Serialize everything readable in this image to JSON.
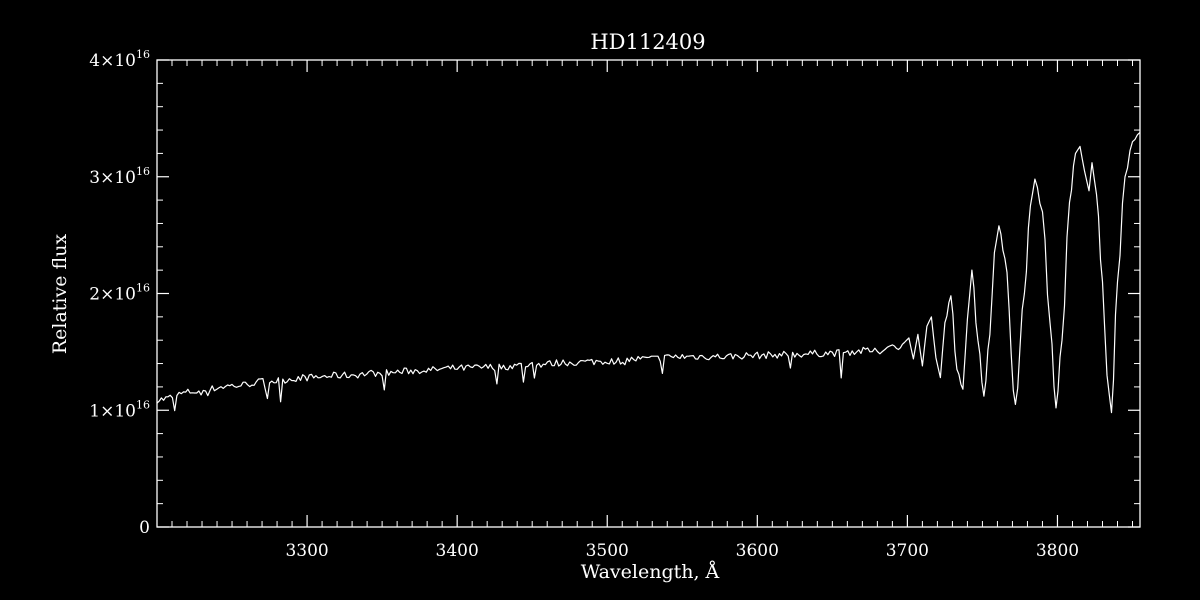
{
  "chart_data": {
    "type": "line",
    "title": "HD112409",
    "xlabel": "Wavelength, Å",
    "ylabel": "Relative flux",
    "xlim": [
      3200,
      3855
    ],
    "ylim": [
      0,
      4e+16
    ],
    "x_ticks": [
      3300,
      3400,
      3500,
      3600,
      3700,
      3800
    ],
    "x_tick_labels": [
      "3300",
      "3400",
      "3500",
      "3600",
      "3700",
      "3800"
    ],
    "y_ticks": [
      0,
      1e+16,
      2e+16,
      3e+16,
      4e+16
    ],
    "y_tick_labels": [
      {
        "mantissa": "0",
        "exp": ""
      },
      {
        "mantissa": "1×10",
        "exp": "16"
      },
      {
        "mantissa": "2×10",
        "exp": "16"
      },
      {
        "mantissa": "3×10",
        "exp": "16"
      },
      {
        "mantissa": "4×10",
        "exp": "16"
      }
    ],
    "grid": false,
    "colors": {
      "background": "#000000",
      "line": "#ffffff",
      "axes": "#ffffff"
    },
    "series": [
      {
        "x": [
          3200,
          3225,
          3250,
          3275,
          3300,
          3325,
          3350,
          3375,
          3400,
          3425,
          3450,
          3475,
          3500,
          3525,
          3550,
          3575,
          3600,
          3625,
          3650,
          3675,
          3680,
          3685,
          3690,
          3694,
          3698,
          3701,
          3704,
          3707,
          3710,
          3713,
          3716,
          3719,
          3722,
          3725,
          3729,
          3733,
          3737,
          3740,
          3743,
          3747,
          3751,
          3755,
          3758,
          3761,
          3765,
          3772,
          3778,
          3782,
          3785,
          3790,
          3795,
          3799,
          3803,
          3808,
          3812,
          3815,
          3818,
          3821,
          3823,
          3826,
          3830,
          3833,
          3836,
          3840,
          3845,
          3850,
          3855
        ],
        "y": [
          1.09e+16,
          1.16e+16,
          1.21e+16,
          1.25e+16,
          1.28e+16,
          1.3e+16,
          1.32e+16,
          1.34e+16,
          1.36e+16,
          1.37e+16,
          1.39e+16,
          1.41e+16,
          1.42e+16,
          1.44e+16,
          1.46e+16,
          1.46e+16,
          1.47e+16,
          1.48e+16,
          1.49e+16,
          1.51e+16,
          1.5e+16,
          1.53e+16,
          1.56e+16,
          1.52e+16,
          1.58e+16,
          1.62e+16,
          1.44e+16,
          1.65e+16,
          1.38e+16,
          1.72e+16,
          1.8e+16,
          1.45e+16,
          1.28e+16,
          1.75e+16,
          1.98e+16,
          1.35e+16,
          1.18e+16,
          1.78e+16,
          2.2e+16,
          1.6e+16,
          1.12e+16,
          1.65e+16,
          2.35e+16,
          2.58e+16,
          2.3e+16,
          1.05e+16,
          2e+16,
          2.75e+16,
          2.98e+16,
          2.7e+16,
          1.75e+16,
          1.02e+16,
          1.6e+16,
          2.78e+16,
          3.2e+16,
          3.26e+16,
          3.05e+16,
          2.88e+16,
          3.12e+16,
          2.85e+16,
          2.1e+16,
          1.3e+16,
          9800000000000000.0,
          2.1e+16,
          3e+16,
          3.3e+16,
          3.38e+16
        ]
      }
    ]
  }
}
